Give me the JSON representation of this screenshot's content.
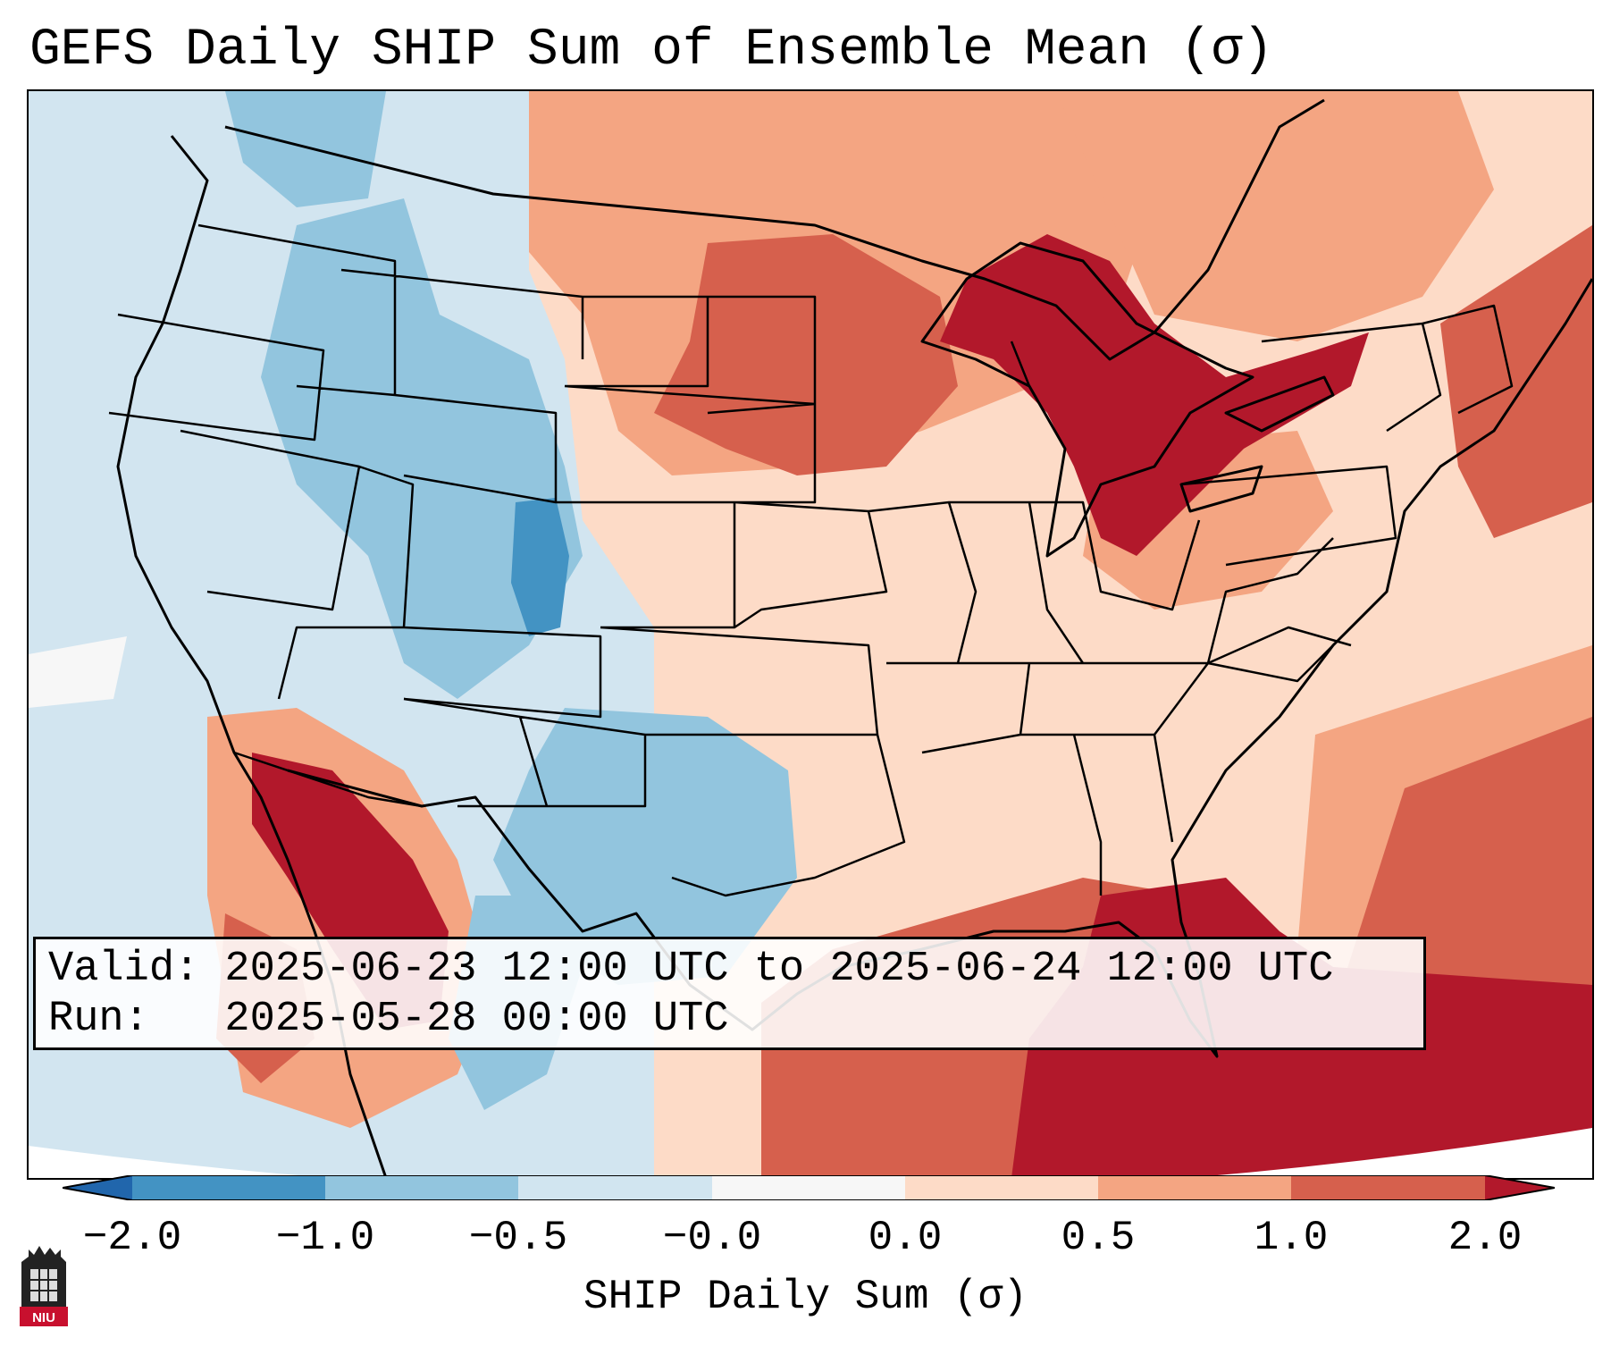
{
  "title": "GEFS Daily SHIP Sum of Ensemble Mean (σ)",
  "info": {
    "valid_line": "Valid: 2025-06-23 12:00 UTC to 2025-06-24 12:00 UTC",
    "run_line": "Run:   2025-05-28 00:00 UTC"
  },
  "colorbar": {
    "label": "SHIP Daily Sum (σ)",
    "ticks": [
      "−2.0",
      "−1.0",
      "−0.5",
      "−0.0",
      "0.0",
      "0.5",
      "1.0",
      "2.0"
    ],
    "bins": [
      {
        "range": "< -2.0",
        "color": "#2166ac"
      },
      {
        "range": "-2.0 to -1.0",
        "color": "#4393c3"
      },
      {
        "range": "-1.0 to -0.5",
        "color": "#92c5de"
      },
      {
        "range": "-0.5 to -0.0",
        "color": "#d1e5f0"
      },
      {
        "range": "-0.0 to 0.0",
        "color": "#f7f7f7"
      },
      {
        "range": "0.0 to 0.5",
        "color": "#fddbc7"
      },
      {
        "range": "0.5 to 1.0",
        "color": "#f4a582"
      },
      {
        "range": "1.0 to 2.0",
        "color": "#d6604d"
      },
      {
        "range": "> 2.0",
        "color": "#b2182b"
      }
    ]
  },
  "regions": [
    {
      "name": "Pacific Northwest / Great Basin",
      "category": "-0.5 to -0.0"
    },
    {
      "name": "Idaho / Wyoming / Colorado Rockies",
      "category": "-1.0 to -0.5"
    },
    {
      "name": "Central Colorado core",
      "category": "-2.0 to -1.0"
    },
    {
      "name": "West Texas / New Mexico",
      "category": "-1.0 to -0.5"
    },
    {
      "name": "Northern Plains",
      "category": "0.0 to 1.0"
    },
    {
      "name": "Great Lakes",
      "category": "> 2.0"
    },
    {
      "name": "Lower Colorado River / Gulf of California",
      "category": "> 2.0"
    },
    {
      "name": "Gulf of Mexico",
      "category": "1.0 to 2.0"
    },
    {
      "name": "Eastern Gulf / Florida Straits / Caribbean",
      "category": "> 2.0"
    },
    {
      "name": "Western Atlantic",
      "category": "0.5 to 2.0"
    },
    {
      "name": "Southeast US",
      "category": "0.0 to 0.5"
    }
  ],
  "logo": {
    "text": "NIU"
  }
}
